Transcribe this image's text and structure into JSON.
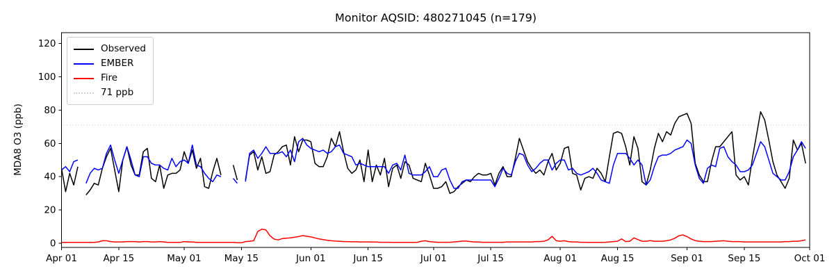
{
  "figure": {
    "title": "Monitor AQSID: 480271045 (n=179)",
    "background_color": "#ffffff"
  },
  "chart_data": {
    "type": "line",
    "title": "Monitor AQSID: 480271045 (n=179)",
    "xlabel": "",
    "ylabel": "MDA8 O3 (ppb)",
    "x_daily_from": "Apr 01",
    "xlim_days": [
      0,
      183
    ],
    "ylim": [
      -2.5,
      126.5
    ],
    "grid": false,
    "legend_position": "upper left",
    "legend": [
      "Observed",
      "EMBER",
      "Fire",
      "71 ppb"
    ],
    "x_tick_labels": [
      "Apr 01",
      "Apr 15",
      "May 01",
      "May 15",
      "Jun 01",
      "Jun 15",
      "Jul 01",
      "Jul 15",
      "Aug 01",
      "Aug 15",
      "Sep 01",
      "Sep 15",
      "Oct 01"
    ],
    "x_tick_days": [
      0,
      14,
      30,
      44,
      61,
      75,
      91,
      105,
      122,
      136,
      153,
      167,
      183
    ],
    "y_ticks": [
      0,
      20,
      40,
      60,
      80,
      100,
      120
    ],
    "threshold": {
      "value": 71,
      "label": "71 ppb",
      "color": "#d3d3d3",
      "style": "dotted"
    },
    "series": [
      {
        "name": "Observed",
        "color": "#000000",
        "values": [
          45,
          31,
          42,
          35,
          46,
          null,
          29,
          32,
          36,
          35,
          45,
          52,
          57,
          44,
          31,
          50,
          58,
          47,
          41,
          41,
          55,
          57,
          39,
          37,
          47,
          33,
          41,
          42,
          42,
          44,
          55,
          48,
          56,
          45,
          51,
          34,
          33,
          43,
          51,
          41,
          null,
          null,
          47,
          38,
          null,
          38,
          53,
          55,
          44,
          52,
          42,
          43,
          53,
          55,
          58,
          59,
          47,
          64,
          55,
          62,
          62,
          61,
          48,
          46,
          46,
          52,
          63,
          58,
          67,
          55,
          45,
          42,
          44,
          50,
          37,
          56,
          37,
          47,
          41,
          51,
          34,
          45,
          47,
          39,
          49,
          47,
          39,
          38,
          37,
          48,
          41,
          33,
          33,
          34,
          37,
          30,
          31,
          34,
          36,
          38,
          37,
          40,
          42,
          41,
          41,
          42,
          35,
          42,
          46,
          40,
          40,
          51,
          63,
          56,
          49,
          45,
          42,
          44,
          41,
          49,
          54,
          44,
          48,
          57,
          58,
          42,
          41,
          32,
          39,
          40,
          39,
          45,
          42,
          37,
          52,
          66,
          67,
          66,
          58,
          47,
          64,
          57,
          37,
          35,
          44,
          57,
          66,
          61,
          67,
          65,
          72,
          76,
          77,
          78,
          72,
          48,
          41,
          37,
          37,
          49,
          58,
          58,
          61,
          64,
          67,
          41,
          38,
          40,
          35,
          51,
          65,
          79,
          74,
          62,
          49,
          41,
          37,
          33,
          39,
          62,
          56,
          60,
          48
        ]
      },
      {
        "name": "EMBER",
        "color": "#0000ff",
        "values": [
          44,
          46,
          43,
          49,
          50,
          null,
          36,
          42,
          45,
          44,
          45,
          54,
          59,
          50,
          42,
          50,
          58,
          50,
          41,
          40,
          52,
          52,
          48,
          47,
          47,
          45,
          44,
          51,
          46,
          49,
          50,
          48,
          59,
          47,
          46,
          42,
          39,
          37,
          41,
          40,
          null,
          null,
          39,
          36,
          null,
          37,
          54,
          56,
          51,
          54,
          58,
          54,
          54,
          54,
          55,
          52,
          56,
          49,
          61,
          63,
          59,
          57,
          56,
          55,
          56,
          54,
          55,
          58,
          59,
          54,
          53,
          52,
          47,
          48,
          47,
          46,
          46,
          46,
          46,
          46,
          42,
          47,
          48,
          44,
          53,
          42,
          41,
          41,
          41,
          43,
          46,
          40,
          40,
          44,
          45,
          38,
          33,
          33,
          37,
          38,
          38,
          38,
          38,
          38,
          38,
          38,
          34,
          39,
          45,
          42,
          41,
          49,
          54,
          53,
          47,
          43,
          45,
          48,
          50,
          50,
          44,
          48,
          50,
          50,
          44,
          45,
          42,
          41,
          42,
          43,
          45,
          42,
          38,
          37,
          36,
          47,
          54,
          54,
          54,
          51,
          47,
          50,
          47,
          35,
          38,
          46,
          52,
          53,
          53,
          54,
          56,
          57,
          58,
          62,
          60,
          47,
          39,
          36,
          45,
          47,
          46,
          57,
          58,
          52,
          49,
          47,
          43,
          43,
          44,
          47,
          54,
          61,
          58,
          50,
          42,
          40,
          38,
          38,
          43,
          52,
          56,
          61,
          57
        ]
      },
      {
        "name": "Fire",
        "color": "#ff0000",
        "values": [
          0.5,
          0.5,
          0.5,
          0.5,
          0.5,
          0.5,
          0.5,
          0.5,
          0.5,
          0.8,
          1.5,
          1.5,
          1.0,
          0.8,
          0.8,
          0.8,
          1.0,
          1.0,
          1.0,
          0.8,
          1.0,
          1.0,
          0.8,
          0.8,
          1.0,
          0.8,
          0.5,
          0.5,
          0.5,
          0.5,
          1.0,
          0.8,
          0.8,
          0.5,
          0.5,
          0.5,
          0.5,
          0.5,
          0.5,
          0.5,
          0.5,
          0.5,
          0.5,
          0.3,
          0.3,
          1.0,
          1.2,
          1.5,
          7.0,
          8.5,
          8.0,
          4.5,
          2.5,
          2.0,
          2.8,
          3.0,
          3.2,
          3.6,
          4.0,
          4.6,
          4.2,
          3.8,
          3.2,
          2.6,
          2.2,
          1.8,
          1.5,
          1.3,
          1.2,
          1.0,
          1.0,
          0.9,
          0.9,
          0.8,
          0.8,
          0.8,
          0.7,
          0.7,
          0.6,
          0.6,
          0.6,
          0.5,
          0.5,
          0.5,
          0.5,
          0.5,
          0.5,
          0.6,
          1.2,
          1.5,
          1.0,
          0.8,
          0.6,
          0.6,
          0.6,
          0.6,
          0.8,
          1.0,
          1.3,
          1.3,
          1.0,
          0.8,
          0.8,
          0.6,
          0.6,
          0.6,
          0.6,
          0.6,
          0.6,
          0.8,
          0.8,
          0.8,
          0.8,
          0.8,
          0.8,
          0.8,
          1.0,
          1.0,
          1.2,
          2.0,
          4.2,
          1.5,
          1.2,
          1.5,
          1.0,
          0.8,
          0.8,
          0.6,
          0.6,
          0.5,
          0.5,
          0.5,
          0.5,
          0.6,
          0.8,
          1.0,
          1.2,
          2.6,
          1.0,
          1.2,
          3.2,
          2.2,
          1.2,
          1.2,
          1.6,
          1.2,
          1.2,
          1.2,
          1.5,
          2.0,
          3.0,
          4.5,
          5.0,
          4.0,
          2.6,
          1.6,
          1.2,
          1.0,
          1.0,
          1.0,
          1.2,
          1.4,
          1.5,
          1.2,
          1.0,
          1.0,
          1.0,
          0.8,
          0.8,
          0.8,
          0.8,
          0.8,
          0.8,
          0.8,
          0.8,
          0.8,
          0.8,
          1.0,
          1.0,
          1.2,
          1.2,
          1.5,
          2.0
        ]
      }
    ]
  }
}
